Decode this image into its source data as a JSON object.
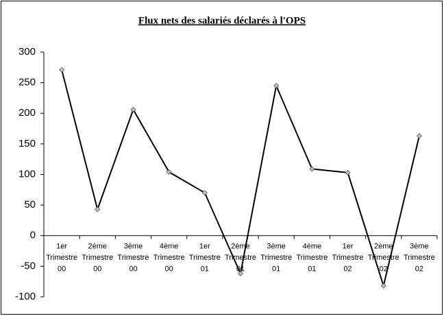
{
  "chart_data": {
    "type": "line",
    "title": "Flux nets des salariés déclarés à l'OPS",
    "categories": [
      [
        "1er",
        "Trimestre",
        "00"
      ],
      [
        "2ème",
        "Trimestre",
        "00"
      ],
      [
        "3ème",
        "Trimestre",
        "00"
      ],
      [
        "4ème",
        "Trimestre",
        "00"
      ],
      [
        "1er",
        "Trimestre",
        "01"
      ],
      [
        "2ème",
        "Trimestre",
        "01"
      ],
      [
        "3ème",
        "Trimestre",
        "01"
      ],
      [
        "4ème",
        "Trimestre",
        "01"
      ],
      [
        "1er",
        "Trimestre",
        "02"
      ],
      [
        "2ème",
        "Trimestre",
        "02"
      ],
      [
        "3ème",
        "Trimestre",
        "02"
      ]
    ],
    "values": [
      271,
      43,
      206,
      104,
      70,
      -62,
      245,
      109,
      103,
      -82,
      163
    ],
    "color": "#000000",
    "marker_color": "#c0c0c0",
    "ylim": [
      -100,
      300
    ],
    "yticks": [
      -100,
      -50,
      0,
      50,
      100,
      150,
      200,
      250,
      300
    ],
    "grid": false
  }
}
